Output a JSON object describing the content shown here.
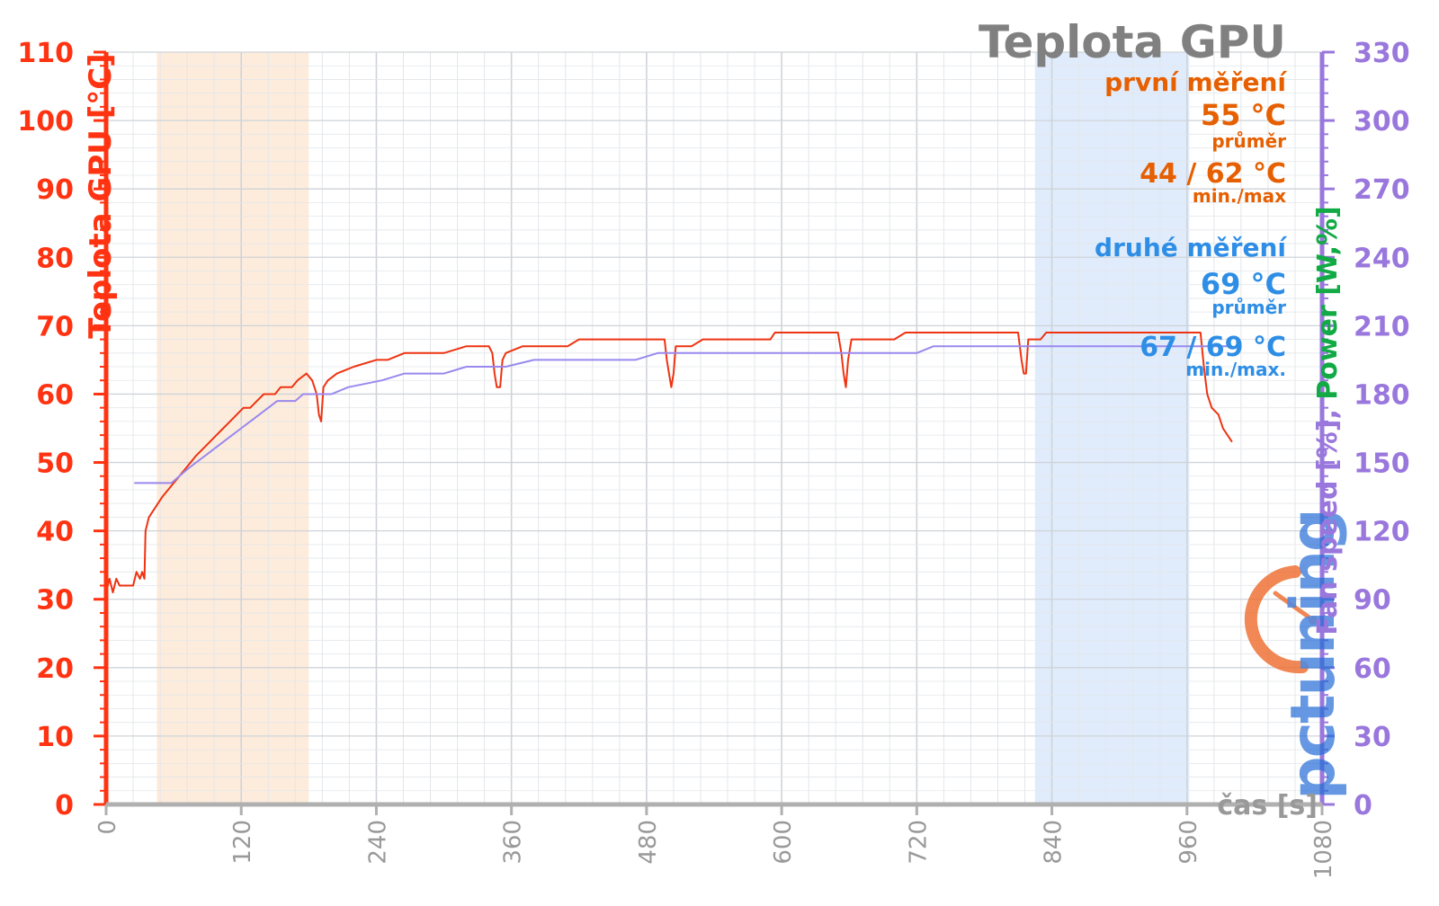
{
  "colors": {
    "temp_axis": "#ff3311",
    "right_axis": "#9977dd",
    "power_label": "#11aa44",
    "series_first": "#ee3311",
    "series_second": "#9988ee",
    "first_text": "#e65f00",
    "second_text": "#2e8ee6",
    "title": "#808080",
    "band_first": "#fde9d6",
    "band_second": "#dbe9fb",
    "grid": "#e3e6ea",
    "grid_major": "#cfd3d8",
    "x_axis": "#b0b0b0"
  },
  "chart_data": {
    "type": "line",
    "title": "Teplota GPU",
    "xlabel": "čas [s]",
    "ylabel": "Teplota GPU [°C]",
    "y2label": {
      "fan": "Fan speed [%]",
      "sep1": ", ",
      "power": "Power",
      "unit": " [W,%]"
    },
    "xlim": [
      0,
      1080
    ],
    "ylim": [
      0,
      110
    ],
    "y2lim": [
      0,
      330
    ],
    "x_ticks": [
      "0",
      "120",
      "240",
      "360",
      "480",
      "600",
      "720",
      "840",
      "960",
      "1080"
    ],
    "y_ticks": [
      "0",
      "10",
      "20",
      "30",
      "40",
      "50",
      "60",
      "70",
      "80",
      "90",
      "100",
      "110"
    ],
    "y2_ticks": [
      "0",
      "30",
      "60",
      "90",
      "120",
      "150",
      "180",
      "210",
      "240",
      "270",
      "300",
      "330"
    ],
    "bands": [
      {
        "from": 45,
        "to": 180
      },
      {
        "from": 825,
        "to": 962
      }
    ],
    "series": [
      {
        "points": [
          [
            0,
            31
          ],
          [
            3,
            33
          ],
          [
            6,
            31
          ],
          [
            9,
            33
          ],
          [
            12,
            32
          ],
          [
            24,
            32
          ],
          [
            27,
            34
          ],
          [
            30,
            33
          ],
          [
            32,
            34
          ],
          [
            34,
            33
          ],
          [
            35,
            40
          ],
          [
            38,
            42
          ],
          [
            42,
            43
          ],
          [
            46,
            44
          ],
          [
            50,
            45
          ],
          [
            55,
            46
          ],
          [
            60,
            47
          ],
          [
            65,
            48
          ],
          [
            70,
            49
          ],
          [
            75,
            50
          ],
          [
            80,
            51
          ],
          [
            86,
            52
          ],
          [
            92,
            53
          ],
          [
            98,
            54
          ],
          [
            104,
            55
          ],
          [
            110,
            56
          ],
          [
            116,
            57
          ],
          [
            122,
            58
          ],
          [
            128,
            58
          ],
          [
            134,
            59
          ],
          [
            140,
            60
          ],
          [
            150,
            60
          ],
          [
            155,
            61
          ],
          [
            165,
            61
          ],
          [
            170,
            62
          ],
          [
            178,
            63
          ],
          [
            183,
            62
          ],
          [
            187,
            60
          ],
          [
            189,
            57
          ],
          [
            191,
            56
          ],
          [
            193,
            61
          ],
          [
            197,
            62
          ],
          [
            205,
            63
          ],
          [
            220,
            64
          ],
          [
            240,
            65
          ],
          [
            250,
            65
          ],
          [
            265,
            66
          ],
          [
            300,
            66
          ],
          [
            320,
            67
          ],
          [
            340,
            67
          ],
          [
            343,
            66
          ],
          [
            345,
            63
          ],
          [
            347,
            61
          ],
          [
            350,
            61
          ],
          [
            352,
            65
          ],
          [
            355,
            66
          ],
          [
            370,
            67
          ],
          [
            410,
            67
          ],
          [
            420,
            68
          ],
          [
            496,
            68
          ],
          [
            498,
            65
          ],
          [
            500,
            63
          ],
          [
            502,
            61
          ],
          [
            504,
            63
          ],
          [
            506,
            67
          ],
          [
            520,
            67
          ],
          [
            530,
            68
          ],
          [
            590,
            68
          ],
          [
            594,
            69
          ],
          [
            650,
            69
          ],
          [
            653,
            66
          ],
          [
            655,
            63
          ],
          [
            657,
            61
          ],
          [
            659,
            65
          ],
          [
            662,
            68
          ],
          [
            700,
            68
          ],
          [
            710,
            69
          ],
          [
            810,
            69
          ],
          [
            813,
            65
          ],
          [
            815,
            63
          ],
          [
            817,
            63
          ],
          [
            819,
            68
          ],
          [
            830,
            68
          ],
          [
            835,
            69
          ],
          [
            972,
            69
          ],
          [
            975,
            64
          ],
          [
            978,
            60
          ],
          [
            982,
            58
          ],
          [
            988,
            57
          ],
          [
            992,
            55
          ],
          [
            996,
            54
          ],
          [
            1000,
            53
          ]
        ],
        "color": "#ee3311"
      },
      {
        "points": [
          [
            25,
            47
          ],
          [
            50,
            47
          ],
          [
            58,
            47
          ],
          [
            65,
            48
          ],
          [
            72,
            49
          ],
          [
            80,
            50
          ],
          [
            88,
            51
          ],
          [
            96,
            52
          ],
          [
            104,
            53
          ],
          [
            112,
            54
          ],
          [
            120,
            55
          ],
          [
            128,
            56
          ],
          [
            136,
            57
          ],
          [
            144,
            58
          ],
          [
            152,
            59
          ],
          [
            168,
            59
          ],
          [
            175,
            60
          ],
          [
            200,
            60
          ],
          [
            215,
            61
          ],
          [
            245,
            62
          ],
          [
            265,
            63
          ],
          [
            300,
            63
          ],
          [
            320,
            64
          ],
          [
            340,
            64
          ],
          [
            355,
            64
          ],
          [
            380,
            65
          ],
          [
            470,
            65
          ],
          [
            490,
            66
          ],
          [
            630,
            66
          ],
          [
            650,
            66
          ],
          [
            720,
            66
          ],
          [
            735,
            67
          ],
          [
            1000,
            67
          ]
        ],
        "color": "#9988ee"
      }
    ]
  },
  "legend": {
    "first_title": "první měření",
    "first_avg": "55 °C",
    "first_avg_label": "průměr",
    "first_minmax": "44 / 62 °C",
    "first_minmax_label": "min./max",
    "second_title": "druhé měření",
    "second_avg": "69 °C",
    "second_avg_label": "průměr",
    "second_minmax": "67 / 69 °C",
    "second_minmax_label": "min./max."
  },
  "watermark": {
    "text": "pctuning",
    "colors": {
      "primary": "#ee6a2a",
      "secondary": "#2a6fd6"
    }
  }
}
